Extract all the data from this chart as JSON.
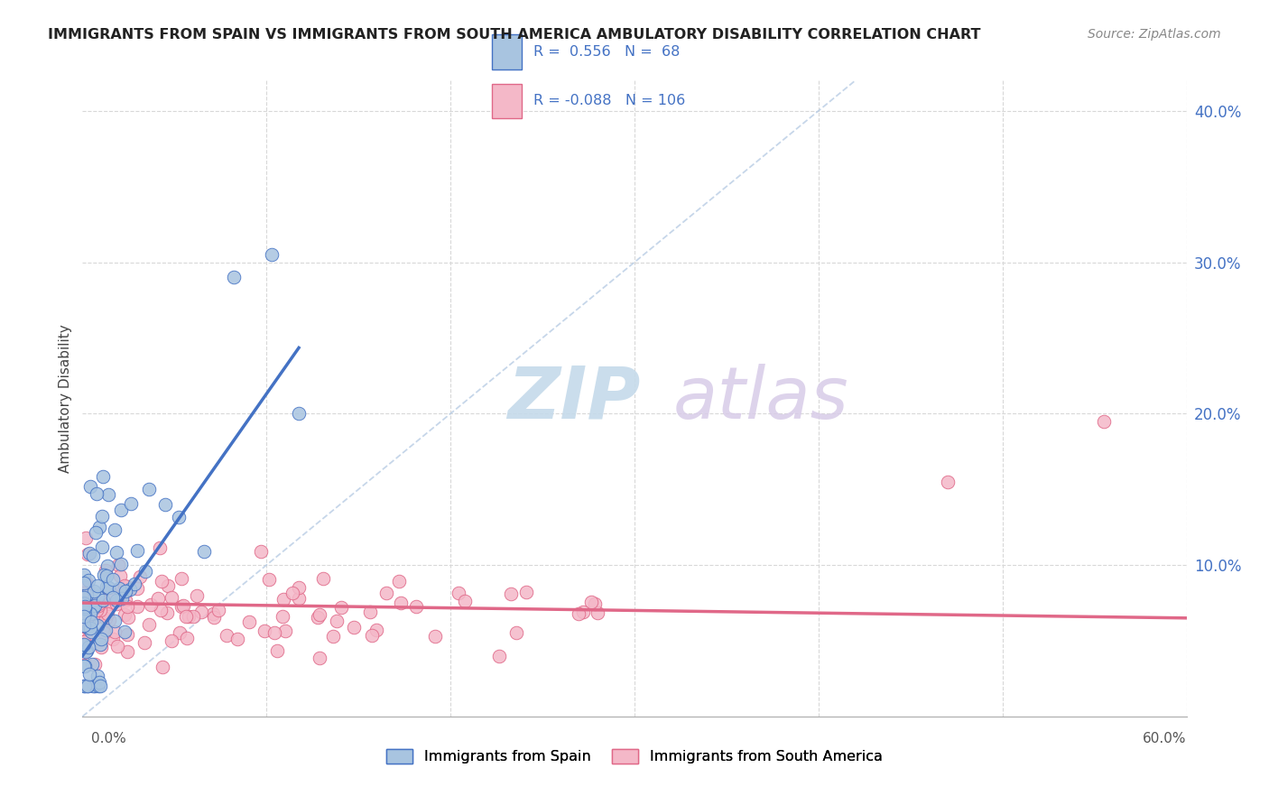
{
  "title": "IMMIGRANTS FROM SPAIN VS IMMIGRANTS FROM SOUTH AMERICA AMBULATORY DISABILITY CORRELATION CHART",
  "source": "Source: ZipAtlas.com",
  "ylabel": "Ambulatory Disability",
  "xlim": [
    0.0,
    0.6
  ],
  "ylim": [
    0.0,
    0.42
  ],
  "color_spain": "#a8c4e0",
  "color_spain_line": "#4472c4",
  "color_south_america": "#f4b8c8",
  "color_south_america_line": "#e06888",
  "color_legend_text": "#4472c4",
  "background_color": "#ffffff",
  "grid_color": "#d8d8d8",
  "watermark_zip": "ZIP",
  "watermark_atlas": "atlas",
  "diag_color": "#b8cce4"
}
